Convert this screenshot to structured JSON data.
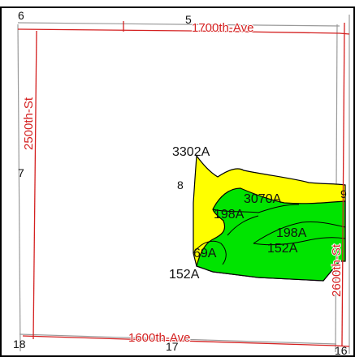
{
  "colors": {
    "road": "#d42020",
    "section_line": "#9a9a9a",
    "soil_light": "#ffff00",
    "soil_dark": "#00e400",
    "boundary": "#000000"
  },
  "roads": {
    "north": "1700th-Ave",
    "south": "1600th-Ave",
    "west": "2500th-St",
    "east": "2600th-St"
  },
  "sections": {
    "top_left": "6",
    "top_mid": "5",
    "left_mid": "7",
    "center": "8",
    "right_mid": "9",
    "bottom_left": "18",
    "bottom_mid": "17",
    "bottom_right": "16"
  },
  "soils": {
    "s3302a": "3302A",
    "s3070a": "3070A",
    "s198a_left": "198A",
    "s198a_right": "198A",
    "s152a_right": "152A",
    "s69a": "69A",
    "s152a_left": "152A"
  }
}
